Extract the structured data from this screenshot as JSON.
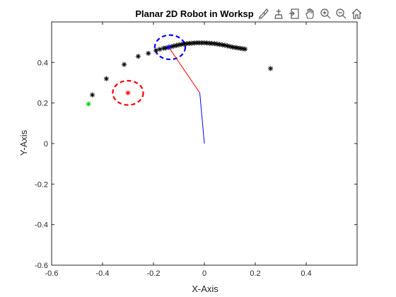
{
  "figure": {
    "background": "#ffffff",
    "toolbar": [
      {
        "name": "brush-icon",
        "label": "Brush/select data"
      },
      {
        "name": "data-tips-icon",
        "label": "Data tips"
      },
      {
        "name": "export-icon",
        "label": "Export"
      },
      {
        "name": "pan-icon",
        "label": "Pan"
      },
      {
        "name": "zoom-in-icon",
        "label": "Zoom in"
      },
      {
        "name": "zoom-out-icon",
        "label": "Zoom out"
      },
      {
        "name": "home-icon",
        "label": "Restore view"
      }
    ]
  },
  "chart_data": {
    "type": "scatter",
    "title": "Planar 2D Robot in Worksp",
    "xlabel": "X-Axis",
    "ylabel": "Y-Axis",
    "xlim": [
      -0.6,
      0.6
    ],
    "ylim": [
      -0.6,
      0.6
    ],
    "xticks": [
      -0.6,
      -0.4,
      -0.2,
      0,
      0.2,
      0.4
    ],
    "yticks": [
      -0.6,
      -0.4,
      -0.2,
      0,
      0.2,
      0.4
    ],
    "xtick_labels": [
      "-0.6",
      "-0.4",
      "-0.2",
      "0",
      "0.2",
      "0.4"
    ],
    "ytick_labels": [
      "-0.6",
      "-0.4",
      "-0.2",
      "0",
      "0.2",
      "0.4"
    ],
    "grid": false,
    "box": true,
    "series": [
      {
        "marker": "asterisk",
        "color": "#000000",
        "x": [
          -0.44,
          -0.385,
          -0.315,
          -0.26,
          -0.22,
          -0.19,
          -0.175,
          -0.16,
          -0.15,
          -0.14,
          -0.13,
          -0.12,
          -0.11,
          -0.1,
          -0.09,
          -0.08,
          -0.07,
          -0.06,
          -0.05,
          -0.04,
          -0.03,
          -0.02,
          -0.01,
          0,
          0.01,
          0.02,
          0.03,
          0.04,
          0.05,
          0.06,
          0.07,
          0.08,
          0.09,
          0.1,
          0.11,
          0.12,
          0.13,
          0.14,
          0.15,
          0.16,
          0.26
        ],
        "y": [
          0.24,
          0.32,
          0.39,
          0.43,
          0.445,
          0.46,
          0.465,
          0.47,
          0.472,
          0.475,
          0.478,
          0.481,
          0.484,
          0.487,
          0.489,
          0.491,
          0.493,
          0.494,
          0.495,
          0.496,
          0.497,
          0.497,
          0.497,
          0.497,
          0.496,
          0.495,
          0.494,
          0.493,
          0.491,
          0.489,
          0.487,
          0.485,
          0.482,
          0.479,
          0.476,
          0.474,
          0.472,
          0.47,
          0.468,
          0.466,
          0.37
        ]
      },
      {
        "marker": "asterisk",
        "color": "#00cc00",
        "x": [
          -0.455
        ],
        "y": [
          0.195
        ]
      },
      {
        "marker": "asterisk",
        "color": "#ff0000",
        "x": [
          -0.3
        ],
        "y": [
          0.25
        ]
      },
      {
        "marker": "asterisk",
        "color": "#0000ff",
        "x": [
          -0.14
        ],
        "y": [
          0.475
        ]
      }
    ],
    "links": [
      {
        "color": "#0000ff",
        "x": [
          0,
          -0.018
        ],
        "y": [
          0,
          0.25
        ]
      },
      {
        "color": "#ff0000",
        "x": [
          -0.018,
          -0.14
        ],
        "y": [
          0.25,
          0.475
        ]
      }
    ],
    "circles": [
      {
        "color": "#ff0000",
        "style": "dashed",
        "cx": -0.3,
        "cy": 0.25,
        "r": 0.06
      },
      {
        "color": "#0000ff",
        "style": "dashed",
        "cx": -0.135,
        "cy": 0.475,
        "r": 0.06
      }
    ]
  }
}
